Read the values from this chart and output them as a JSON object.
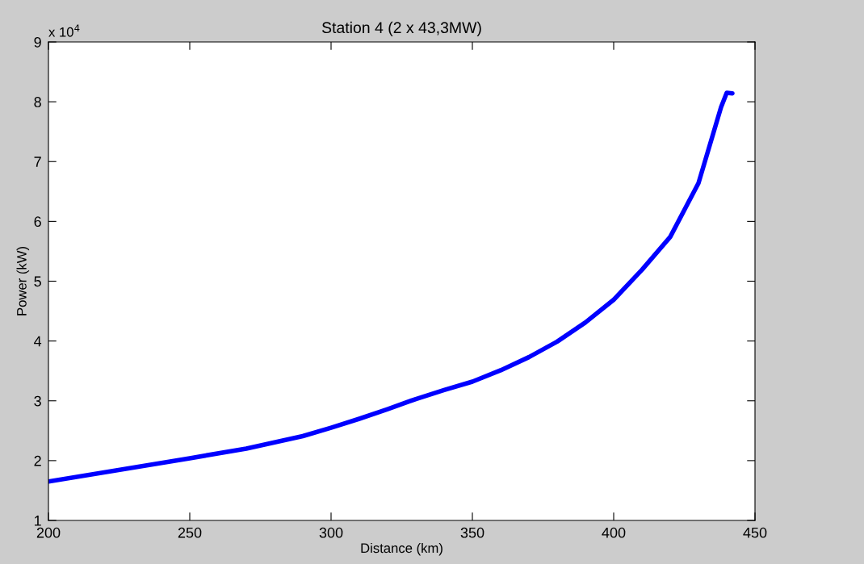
{
  "chart_data": {
    "type": "line",
    "title": "Station 4 (2 x 43,3MW)",
    "xlabel": "Distance (km)",
    "ylabel": "Power (kW)",
    "annotations": [
      "x 10$^{4}$"
    ],
    "x": [
      200,
      250,
      270,
      290,
      300,
      310,
      320,
      330,
      340,
      350,
      360,
      370,
      380,
      390,
      400,
      410,
      420,
      430,
      438,
      440,
      442
    ],
    "series": [
      {
        "color": "#0000ff",
        "values": [
          1.65,
          2.04,
          2.2,
          2.41,
          2.55,
          2.7,
          2.86,
          3.03,
          3.18,
          3.32,
          3.51,
          3.73,
          3.99,
          4.31,
          4.69,
          5.19,
          5.74,
          6.64,
          7.91,
          8.15,
          8.14
        ]
      }
    ],
    "xlim": [
      200,
      450
    ],
    "xticks": [
      200,
      250,
      300,
      350,
      400,
      450
    ],
    "ylim": [
      1,
      9
    ],
    "yticks": [
      1,
      2,
      3,
      4,
      5,
      6,
      7,
      8,
      9
    ],
    "grid": false,
    "marker": "none",
    "line_style": "solid"
  }
}
